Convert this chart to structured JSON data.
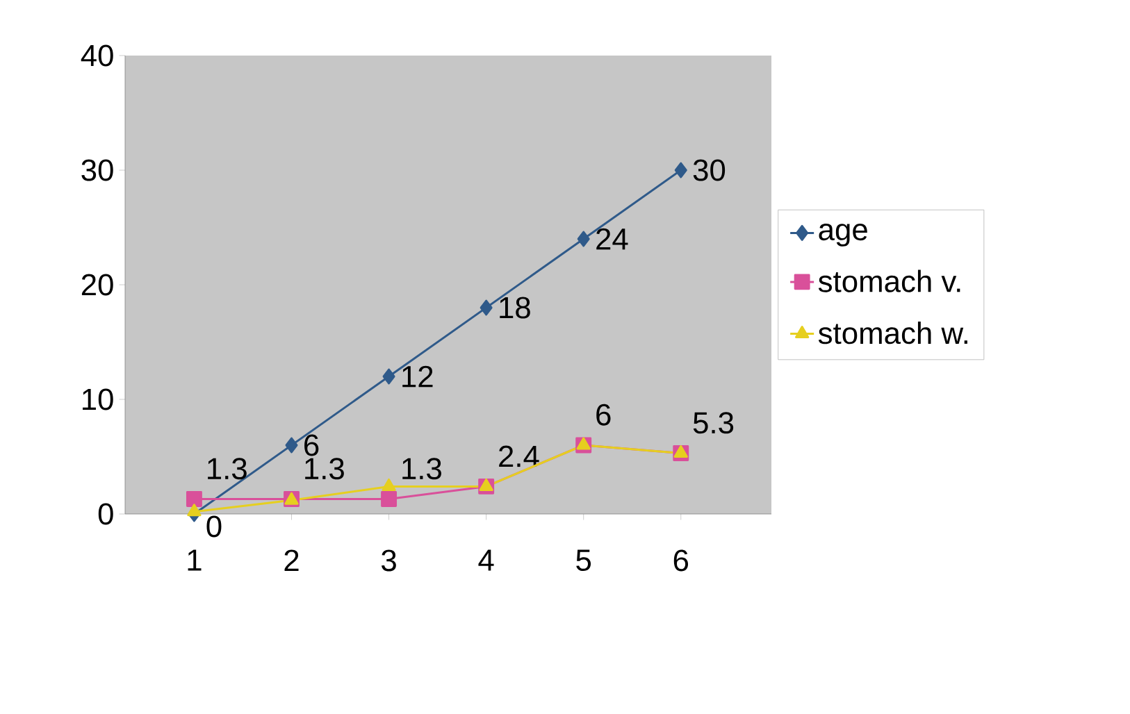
{
  "chart_data": {
    "type": "line",
    "categories": [
      "1",
      "2",
      "3",
      "4",
      "5",
      "6"
    ],
    "series": [
      {
        "name": "age",
        "color": "#2f5a8a",
        "marker": "diamond",
        "values": [
          0,
          6,
          12,
          18,
          24,
          30
        ],
        "value_labels": [
          "0",
          "6",
          "12",
          "18",
          "24",
          "30"
        ]
      },
      {
        "name": "stomach v.",
        "color": "#d9509a",
        "marker": "square",
        "values": [
          1.3,
          1.3,
          1.3,
          2.4,
          6,
          5.3
        ],
        "value_labels": [
          "1.3",
          "1.3",
          "1.3",
          "2.4",
          "6",
          "5.3"
        ]
      },
      {
        "name": "stomach w.",
        "color": "#e6cf1f",
        "marker": "triangle",
        "values": [
          0.2,
          1.2,
          2.4,
          2.4,
          6,
          5.3
        ]
      }
    ],
    "ylim": [
      0,
      40
    ],
    "yticks": [
      0,
      10,
      20,
      30,
      40
    ],
    "grid": false,
    "legend": "right"
  }
}
